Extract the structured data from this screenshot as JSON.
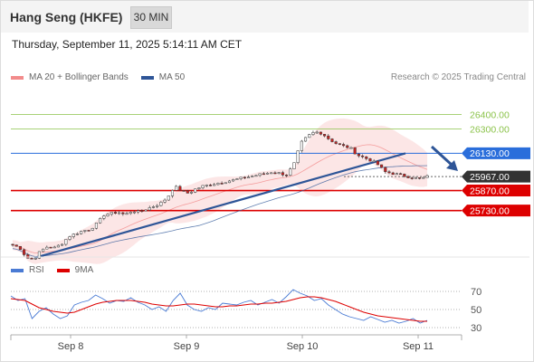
{
  "header": {
    "title": "Hang Seng (HKFE)",
    "timeframe": "30 MIN",
    "timestamp": "Thursday, September 11, 2025 5:14:11 AM CET",
    "copyright": "Research © 2025 Trading Central"
  },
  "colors": {
    "bollinger": "#f28b8b",
    "ma50": "#2e5597",
    "resistance": "#8bc34a",
    "pivot": "#2a6edb",
    "support": "#dd0000",
    "last": "#333333",
    "rsi": "#4a7bd4",
    "rsi_ma": "#dd0000",
    "candle_up": "#2e9a2e",
    "candle_down": "#cc2222"
  },
  "legend": {
    "bollinger_label": "MA 20 + Bollinger Bands",
    "ma50_label": "MA 50",
    "rsi_label": "RSI",
    "rsi_ma_label": "9MA"
  },
  "chart_data": [
    {
      "type": "candlestick",
      "instrument": "Hang Seng (HKFE)",
      "interval": "30 MIN",
      "x_tick_labels": [
        "Sep 8",
        "Sep 9",
        "Sep 10",
        "Sep 11"
      ],
      "y_range": [
        25450,
        26600
      ],
      "close_path": [
        25490,
        25470,
        25400,
        25390,
        25450,
        25480,
        25470,
        25500,
        25550,
        25570,
        25590,
        25600,
        25640,
        25700,
        25710,
        25720,
        25700,
        25730,
        25720,
        25740,
        25760,
        25780,
        25820,
        25900,
        25870,
        25850,
        25880,
        25900,
        25910,
        25920,
        25930,
        25940,
        25950,
        25960,
        25970,
        25980,
        25990,
        26000,
        25990,
        25980,
        26050,
        26200,
        26250,
        26280,
        26270,
        26230,
        26200,
        26180,
        26170,
        26120,
        26100,
        26080,
        26050,
        26000,
        25990,
        25980,
        25970,
        25960,
        25950,
        25967
      ],
      "price_levels": [
        {
          "label": "26400.00",
          "value": 26400,
          "kind": "resistance"
        },
        {
          "label": "26300.00",
          "value": 26300,
          "kind": "resistance"
        },
        {
          "label": "26130.00",
          "value": 26130,
          "kind": "pivot"
        },
        {
          "label": "25967.00",
          "value": 25967,
          "kind": "last"
        },
        {
          "label": "25870.00",
          "value": 25870,
          "kind": "support"
        },
        {
          "label": "25730.00",
          "value": 25730,
          "kind": "support"
        }
      ],
      "legend": [
        "MA 20 + Bollinger Bands",
        "MA 50"
      ],
      "forecast_arrow": "down"
    },
    {
      "type": "line",
      "name": "RSI panel",
      "y_tick_labels": [
        "70",
        "50",
        "30"
      ],
      "y_range": [
        20,
        80
      ],
      "series": [
        {
          "name": "RSI",
          "values": [
            65,
            60,
            62,
            40,
            48,
            52,
            45,
            40,
            43,
            55,
            58,
            60,
            66,
            62,
            57,
            60,
            59,
            63,
            58,
            55,
            50,
            53,
            48,
            60,
            68,
            55,
            50,
            48,
            52,
            50,
            57,
            56,
            55,
            58,
            60,
            55,
            58,
            61,
            57,
            64,
            72,
            68,
            65,
            60,
            62,
            55,
            50,
            45,
            42,
            40,
            38,
            42,
            39,
            36,
            38,
            35,
            37,
            40,
            35,
            38
          ]
        },
        {
          "name": "9MA",
          "values": [
            62,
            61,
            60,
            56,
            52,
            50,
            48,
            47,
            46,
            47,
            50,
            53,
            56,
            58,
            59,
            60,
            60,
            60,
            59,
            58,
            56,
            55,
            54,
            54,
            55,
            56,
            56,
            55,
            54,
            53,
            53,
            54,
            54,
            55,
            56,
            56,
            57,
            57,
            58,
            59,
            61,
            63,
            64,
            64,
            63,
            61,
            59,
            56,
            53,
            50,
            47,
            45,
            43,
            42,
            41,
            40,
            39,
            38,
            37,
            37
          ]
        }
      ],
      "legend": [
        "RSI",
        "9MA"
      ]
    }
  ]
}
